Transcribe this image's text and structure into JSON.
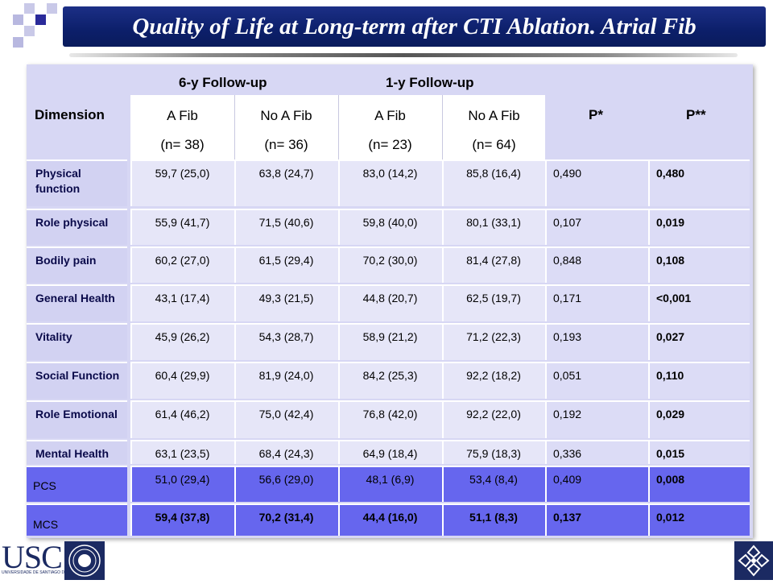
{
  "title": "Quality of Life at Long-term after CTI Ablation. Atrial Fib",
  "header": {
    "dimension": "Dimension",
    "group6y": "6-y Follow-up",
    "group1y": "1-y Follow-up",
    "p1": "P*",
    "p2": "P**",
    "cols": [
      {
        "name": "A Fib",
        "n": "(n= 38)"
      },
      {
        "name": "No A Fib",
        "n": "(n= 36)"
      },
      {
        "name": "A Fib",
        "n": "(n= 23)"
      },
      {
        "name": "No A Fib",
        "n": "(n= 64)"
      }
    ]
  },
  "rows": [
    {
      "label": "Physical function",
      "values": [
        "59,7 (25,0)",
        "63,8 (24,7)",
        "83,0 (14,2)",
        "85,8 (16,4)",
        "0,490",
        "0,480"
      ]
    },
    {
      "label": "Role physical",
      "values": [
        "55,9 (41,7)",
        "71,5 (40,6)",
        "59,8 (40,0)",
        "80,1 (33,1)",
        "0,107",
        "0,019"
      ]
    },
    {
      "label": "Bodily pain",
      "values": [
        "60,2 (27,0)",
        "61,5 (29,4)",
        "70,2 (30,0)",
        "81,4 (27,8)",
        "0,848",
        "0,108"
      ]
    },
    {
      "label": "General Health",
      "values": [
        "43,1 (17,4)",
        "49,3 (21,5)",
        "44,8 (20,7)",
        "62,5 (19,7)",
        "0,171",
        "<0,001"
      ]
    },
    {
      "label": "Vitality",
      "values": [
        "45,9 (26,2)",
        "54,3 (28,7)",
        "58,9 (21,2)",
        "71,2 (22,3)",
        "0,193",
        "0,027"
      ]
    },
    {
      "label": "Social Function",
      "values": [
        "60,4 (29,9)",
        "81,9 (24,0)",
        "84,2 (25,3)",
        "92,2 (18,2)",
        "0,051",
        "0,110"
      ]
    },
    {
      "label": "Role Emotional",
      "values": [
        "61,4 (46,2)",
        "75,0 (42,4)",
        "76,8 (42,0)",
        "92,2 (22,0)",
        "0,192",
        "0,029"
      ]
    },
    {
      "label": "Mental Health",
      "values": [
        "63,1 (23,5)",
        "68,4 (24,3)",
        "64,9 (18,4)",
        "75,9 (18,3)",
        "0,336",
        "0,015"
      ]
    },
    {
      "label": "PCS",
      "values": [
        "51,0 (29,4)",
        "56,6 (29,0)",
        "48,1 (6,9)",
        "53,4 (8,4)",
        "0,409",
        "0,008"
      ]
    },
    {
      "label": "MCS",
      "values": [
        "59,4 (37,8)",
        "70,2 (31,4)",
        "44,4 (16,0)",
        "51,1 (8,3)",
        "0,137",
        "0,012"
      ]
    }
  ],
  "logo": {
    "text": "USC",
    "subtext": "UNIVERSIDADE DE SANTIAGO DE COMPOSTELA"
  }
}
